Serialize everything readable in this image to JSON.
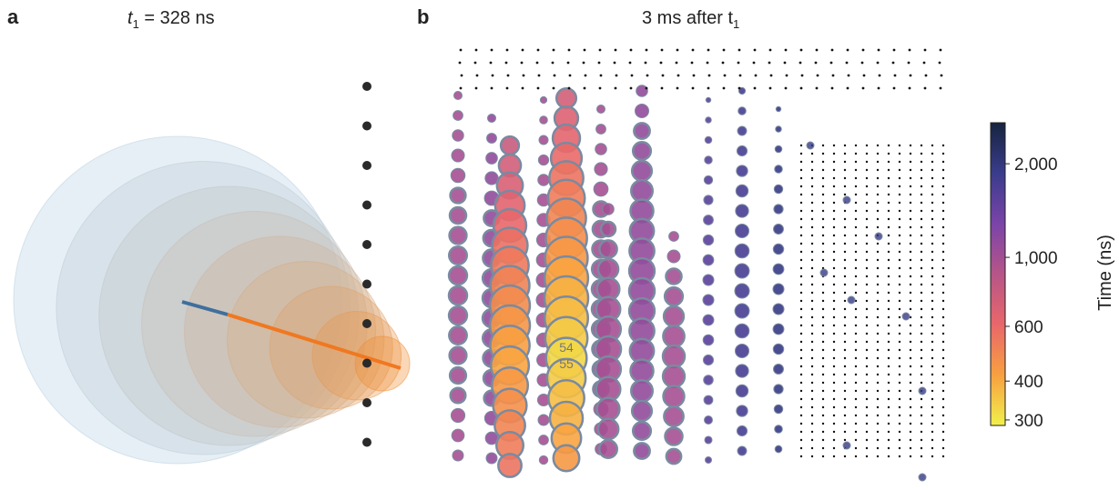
{
  "panels": [
    {
      "label": "a",
      "title": {
        "prefix": "t",
        "sub": "1",
        "suffix": " = 328 ns"
      }
    },
    {
      "label": "b",
      "title": {
        "prefix": "3 ms after t",
        "sub": "1"
      },
      "annotations": [
        "54",
        "55"
      ]
    }
  ],
  "chart_data": {
    "type": "colorbar",
    "label": "Time (ns)",
    "scale": "log",
    "ylim": [
      288,
      2710
    ],
    "yticks": [
      {
        "value": 2000,
        "label": "2,000"
      },
      {
        "value": 1000,
        "label": "1,000"
      },
      600,
      400,
      300
    ],
    "colors": [
      "#f0f04c",
      "#f8a040",
      "#e9676a",
      "#b75588",
      "#7a44a8",
      "#3a3c8c",
      "#16243e"
    ]
  }
}
